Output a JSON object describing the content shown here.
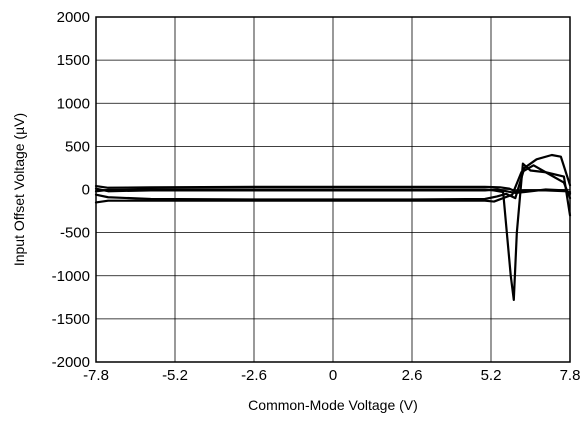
{
  "chart_data": {
    "type": "line",
    "xlabel": "Common-Mode Voltage (V)",
    "ylabel": "Input Offset Voltage (µV)",
    "xlim": [
      -7.8,
      7.8
    ],
    "ylim": [
      -2000,
      2000
    ],
    "x_ticks": [
      -7.8,
      -5.2,
      -2.6,
      0,
      2.6,
      5.2,
      7.8
    ],
    "x_tick_labels": [
      "-7.8",
      "-5.2",
      "-2.6",
      "0",
      "2.6",
      "5.2",
      "7.8"
    ],
    "y_ticks": [
      2000,
      1500,
      1000,
      500,
      0,
      -500,
      -1000,
      -1500,
      -2000
    ],
    "y_tick_labels": [
      "2000",
      "1500",
      "1000",
      "500",
      "0",
      "-500",
      "-1000",
      "-1500",
      "-2000"
    ],
    "grid": true,
    "line_color": "#000000",
    "series": [
      {
        "points": [
          [
            -7.8,
            40
          ],
          [
            -7.4,
            20
          ],
          [
            -6.0,
            25
          ],
          [
            -2.6,
            30
          ],
          [
            0,
            30
          ],
          [
            2.6,
            30
          ],
          [
            5.0,
            30
          ],
          [
            5.5,
            25
          ],
          [
            5.8,
            10
          ],
          [
            6.0,
            -20
          ],
          [
            6.3,
            -10
          ],
          [
            7.0,
            -10
          ],
          [
            7.7,
            -20
          ],
          [
            7.8,
            -50
          ]
        ]
      },
      {
        "points": [
          [
            -7.8,
            -20
          ],
          [
            -7.4,
            -5
          ],
          [
            -6.0,
            0
          ],
          [
            -2.6,
            0
          ],
          [
            0,
            0
          ],
          [
            2.6,
            0
          ],
          [
            5.0,
            0
          ],
          [
            5.3,
            -10
          ],
          [
            5.6,
            -30
          ],
          [
            5.85,
            -1000
          ],
          [
            5.95,
            -1280
          ],
          [
            6.05,
            -500
          ],
          [
            6.25,
            300
          ],
          [
            6.5,
            220
          ],
          [
            7.0,
            200
          ],
          [
            7.6,
            150
          ],
          [
            7.8,
            -300
          ]
        ]
      },
      {
        "points": [
          [
            -7.8,
            -60
          ],
          [
            -7.4,
            -90
          ],
          [
            -6.0,
            -110
          ],
          [
            -2.6,
            -115
          ],
          [
            0,
            -115
          ],
          [
            2.6,
            -115
          ],
          [
            5.0,
            -110
          ],
          [
            5.4,
            -80
          ],
          [
            5.7,
            -50
          ],
          [
            6.0,
            -100
          ],
          [
            6.3,
            250
          ],
          [
            6.7,
            350
          ],
          [
            7.2,
            400
          ],
          [
            7.5,
            380
          ],
          [
            7.8,
            50
          ]
        ]
      },
      {
        "points": [
          [
            -7.8,
            -150
          ],
          [
            -7.4,
            -130
          ],
          [
            -6.0,
            -130
          ],
          [
            -2.6,
            -130
          ],
          [
            0,
            -130
          ],
          [
            2.6,
            -130
          ],
          [
            5.0,
            -130
          ],
          [
            5.3,
            -140
          ],
          [
            5.6,
            -100
          ],
          [
            5.9,
            -60
          ],
          [
            6.2,
            200
          ],
          [
            6.6,
            280
          ],
          [
            7.0,
            200
          ],
          [
            7.6,
            80
          ],
          [
            7.8,
            -100
          ]
        ]
      },
      {
        "points": [
          [
            -7.8,
            10
          ],
          [
            -7.4,
            -20
          ],
          [
            -6.0,
            -10
          ],
          [
            -2.6,
            -10
          ],
          [
            0,
            -10
          ],
          [
            2.6,
            -10
          ],
          [
            5.0,
            -10
          ],
          [
            5.4,
            0
          ],
          [
            5.7,
            -20
          ],
          [
            6.0,
            -40
          ],
          [
            6.3,
            -30
          ],
          [
            7.0,
            0
          ],
          [
            7.6,
            -10
          ],
          [
            7.8,
            -30
          ]
        ]
      }
    ]
  }
}
